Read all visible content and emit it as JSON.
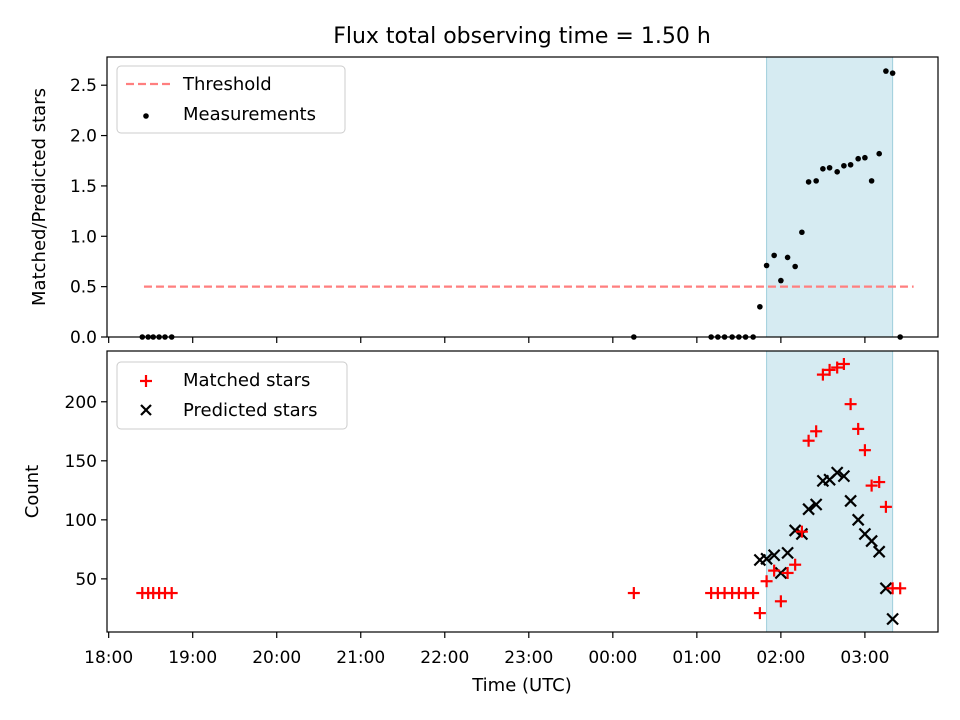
{
  "chart_data": {
    "title": "Flux total observing time = 1.50 h",
    "xlabel": "Time (UTC)",
    "x_tick_labels": [
      "18:00",
      "19:00",
      "20:00",
      "21:00",
      "22:00",
      "23:00",
      "00:00",
      "01:00",
      "02:00",
      "03:00"
    ],
    "x_tick_hours": [
      18,
      19,
      20,
      21,
      22,
      23,
      24,
      25,
      26,
      27
    ],
    "x_range_hours": [
      17.98,
      27.87
    ],
    "colors": {
      "threshold": "#ff7f7f",
      "measurement": "#000000",
      "matched": "#ff0000",
      "predicted": "#000000",
      "shade": "#add8e6"
    },
    "top": {
      "type": "scatter",
      "ylabel": "Matched/Predicted stars",
      "ylim": [
        0,
        2.78
      ],
      "yticks": [
        0.0,
        0.5,
        1.0,
        1.5,
        2.0,
        2.5
      ],
      "ytick_labels": [
        "0.0",
        "0.5",
        "1.0",
        "1.5",
        "2.0",
        "2.5"
      ],
      "legend_position": "top-left",
      "legend": [
        "Threshold",
        "Measurements"
      ],
      "threshold": {
        "name": "Threshold",
        "y": 0.5,
        "x_start": 18.42,
        "x_end": 27.58
      },
      "shaded_region": [
        25.83,
        27.33
      ],
      "measurements": {
        "name": "Measurements",
        "x": [
          18.4,
          18.47,
          18.53,
          18.6,
          18.67,
          18.75,
          24.25,
          25.17,
          25.25,
          25.33,
          25.42,
          25.5,
          25.58,
          25.67,
          25.75,
          25.83,
          25.92,
          26.0,
          26.08,
          26.17,
          26.25,
          26.33,
          26.42,
          26.5,
          26.58,
          26.67,
          26.75,
          26.83,
          26.92,
          27.0,
          27.08,
          27.17,
          27.25,
          27.33,
          27.42
        ],
        "y": [
          0,
          0,
          0,
          0,
          0,
          0,
          0,
          0,
          0,
          0,
          0,
          0,
          0,
          0,
          0.3,
          0.71,
          0.81,
          0.56,
          0.79,
          0.7,
          1.04,
          1.54,
          1.55,
          1.67,
          1.68,
          1.64,
          1.7,
          1.71,
          1.77,
          1.78,
          1.55,
          1.82,
          2.64,
          2.62,
          0
        ]
      }
    },
    "bottom": {
      "type": "scatter",
      "ylabel": "Count",
      "ylim": [
        5,
        243
      ],
      "yticks": [
        50,
        100,
        150,
        200
      ],
      "ytick_labels": [
        "50",
        "100",
        "150",
        "200"
      ],
      "legend_position": "top-left",
      "legend": [
        "Matched stars",
        "Predicted stars"
      ],
      "shaded_region": [
        25.83,
        27.33
      ],
      "matched": {
        "name": "Matched stars",
        "x": [
          18.4,
          18.47,
          18.53,
          18.6,
          18.67,
          18.75,
          24.25,
          25.17,
          25.25,
          25.33,
          25.42,
          25.5,
          25.58,
          25.67,
          25.75,
          25.83,
          25.92,
          26.0,
          26.08,
          26.17,
          26.25,
          26.33,
          26.42,
          26.5,
          26.58,
          26.67,
          26.75,
          26.83,
          26.92,
          27.0,
          27.08,
          27.17,
          27.25,
          27.33,
          27.42
        ],
        "y": [
          38,
          38,
          38,
          38,
          38,
          38,
          38,
          38,
          38,
          38,
          38,
          38,
          38,
          38,
          21,
          48,
          57,
          31,
          55,
          62,
          90,
          167,
          175,
          223,
          227,
          229,
          232,
          198,
          177,
          159,
          129,
          132,
          111,
          42,
          42
        ]
      },
      "predicted": {
        "name": "Predicted stars",
        "x": [
          25.75,
          25.83,
          25.92,
          26.0,
          26.08,
          26.17,
          26.25,
          26.33,
          26.42,
          26.5,
          26.58,
          26.67,
          26.75,
          26.83,
          26.92,
          27.0,
          27.08,
          27.17,
          27.25,
          27.33
        ],
        "y": [
          66,
          67,
          70,
          55,
          72,
          91,
          88,
          109,
          113,
          133,
          134,
          140,
          137,
          116,
          100,
          88,
          82,
          73,
          42,
          16
        ]
      }
    }
  }
}
